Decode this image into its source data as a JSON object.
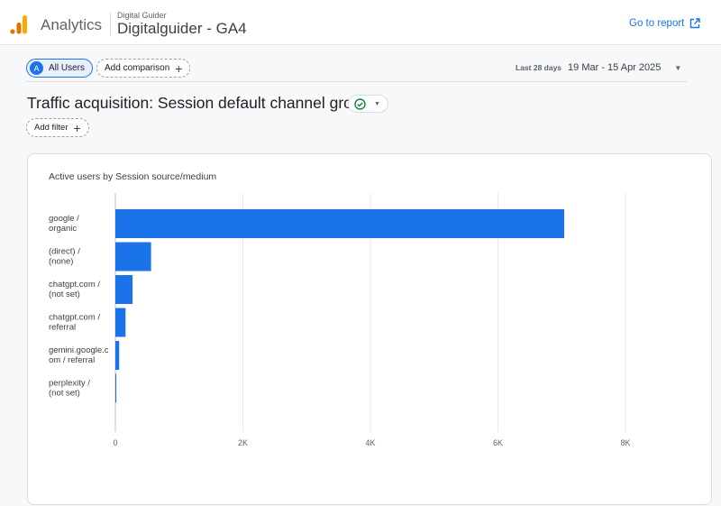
{
  "header": {
    "app_name": "Analytics",
    "account": "Digital Guider",
    "property": "Digitalguider - GA4",
    "goto_report": "Go to report",
    "logo_color": "#f9ab00"
  },
  "toolbar": {
    "segment_avatar": "A",
    "segment": "All Users",
    "add_comparison": "Add comparison",
    "date_label": "Last 28 days",
    "date_range": "19 Mar - 15 Apr 2025"
  },
  "report": {
    "title": "Traffic acquisition: Session default channel group",
    "add_filter": "Add filter",
    "status_icon": "check-circle-icon"
  },
  "chart_data": {
    "type": "bar",
    "orientation": "horizontal",
    "title": "Active users by Session source/medium",
    "categories": [
      [
        "google /",
        "organic"
      ],
      [
        "(direct) /",
        "(none)"
      ],
      [
        "chatgpt.com /",
        "(not set)"
      ],
      [
        "chatgpt.com /",
        "referral"
      ],
      [
        "gemini.google.c",
        "om / referral"
      ],
      [
        "perplexity /",
        "(not set)"
      ]
    ],
    "values": [
      7040,
      560,
      270,
      160,
      60,
      10
    ],
    "xlim": [
      0,
      8000
    ],
    "ticks": [
      {
        "value": 0,
        "label": "0"
      },
      {
        "value": 2000,
        "label": "2K"
      },
      {
        "value": 4000,
        "label": "4K"
      },
      {
        "value": 6000,
        "label": "6K"
      },
      {
        "value": 8000,
        "label": "8K"
      }
    ],
    "bar_color": "#1a73e8",
    "grid": true
  }
}
